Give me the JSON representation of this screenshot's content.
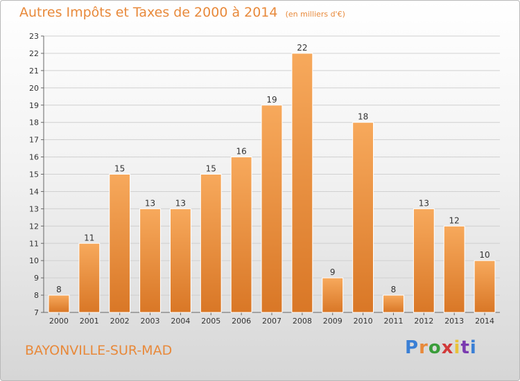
{
  "header": {
    "title": "Autres Impôts et Taxes de 2000 à 2014",
    "unit": "(en milliers d'€)"
  },
  "footer": {
    "commune": "BAYONVILLE-SUR-MAD",
    "brand": "Proxiti",
    "brand_colors": [
      "#3a7fd5",
      "#e8893a",
      "#3a9d3a",
      "#d13a3a",
      "#e8c23a",
      "#7a3ab0",
      "#3a7fd5"
    ]
  },
  "colors": {
    "bar_light": "#f7a95c",
    "bar_dark": "#d97726",
    "text_accent": "#e8893a",
    "grid": "#d0d0d0"
  },
  "chart_data": {
    "type": "bar",
    "categories": [
      "2000",
      "2001",
      "2002",
      "2003",
      "2004",
      "2005",
      "2006",
      "2007",
      "2008",
      "2009",
      "2010",
      "2011",
      "2012",
      "2013",
      "2014"
    ],
    "values": [
      8,
      11,
      15,
      13,
      13,
      15,
      16,
      19,
      22,
      9,
      18,
      8,
      13,
      12,
      10
    ],
    "ylim": [
      7,
      23
    ],
    "yticks": [
      7,
      8,
      9,
      10,
      11,
      12,
      13,
      14,
      15,
      16,
      17,
      18,
      19,
      20,
      21,
      22,
      23
    ],
    "grid": true,
    "data_labels": true
  }
}
